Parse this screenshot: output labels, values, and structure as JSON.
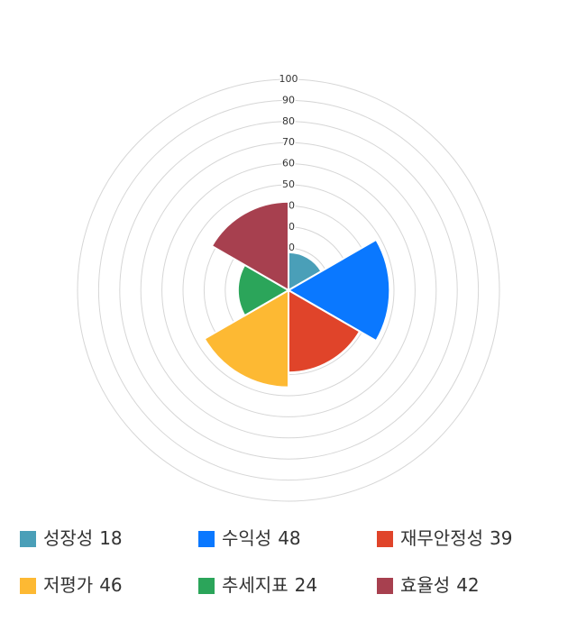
{
  "chart_data": {
    "type": "polar-area",
    "categories": [
      "성장성",
      "수익성",
      "재무안정성",
      "저평가",
      "추세지표",
      "효율성"
    ],
    "values": [
      18,
      48,
      39,
      46,
      24,
      42
    ],
    "colors": [
      "#4a9fb8",
      "#0a78ff",
      "#e0442a",
      "#fdb933",
      "#2ba55a",
      "#a7404f"
    ],
    "ylim": [
      0,
      100
    ],
    "yticks": [
      10,
      20,
      30,
      40,
      50,
      60,
      70,
      80,
      90,
      100
    ],
    "grid": true
  }
}
